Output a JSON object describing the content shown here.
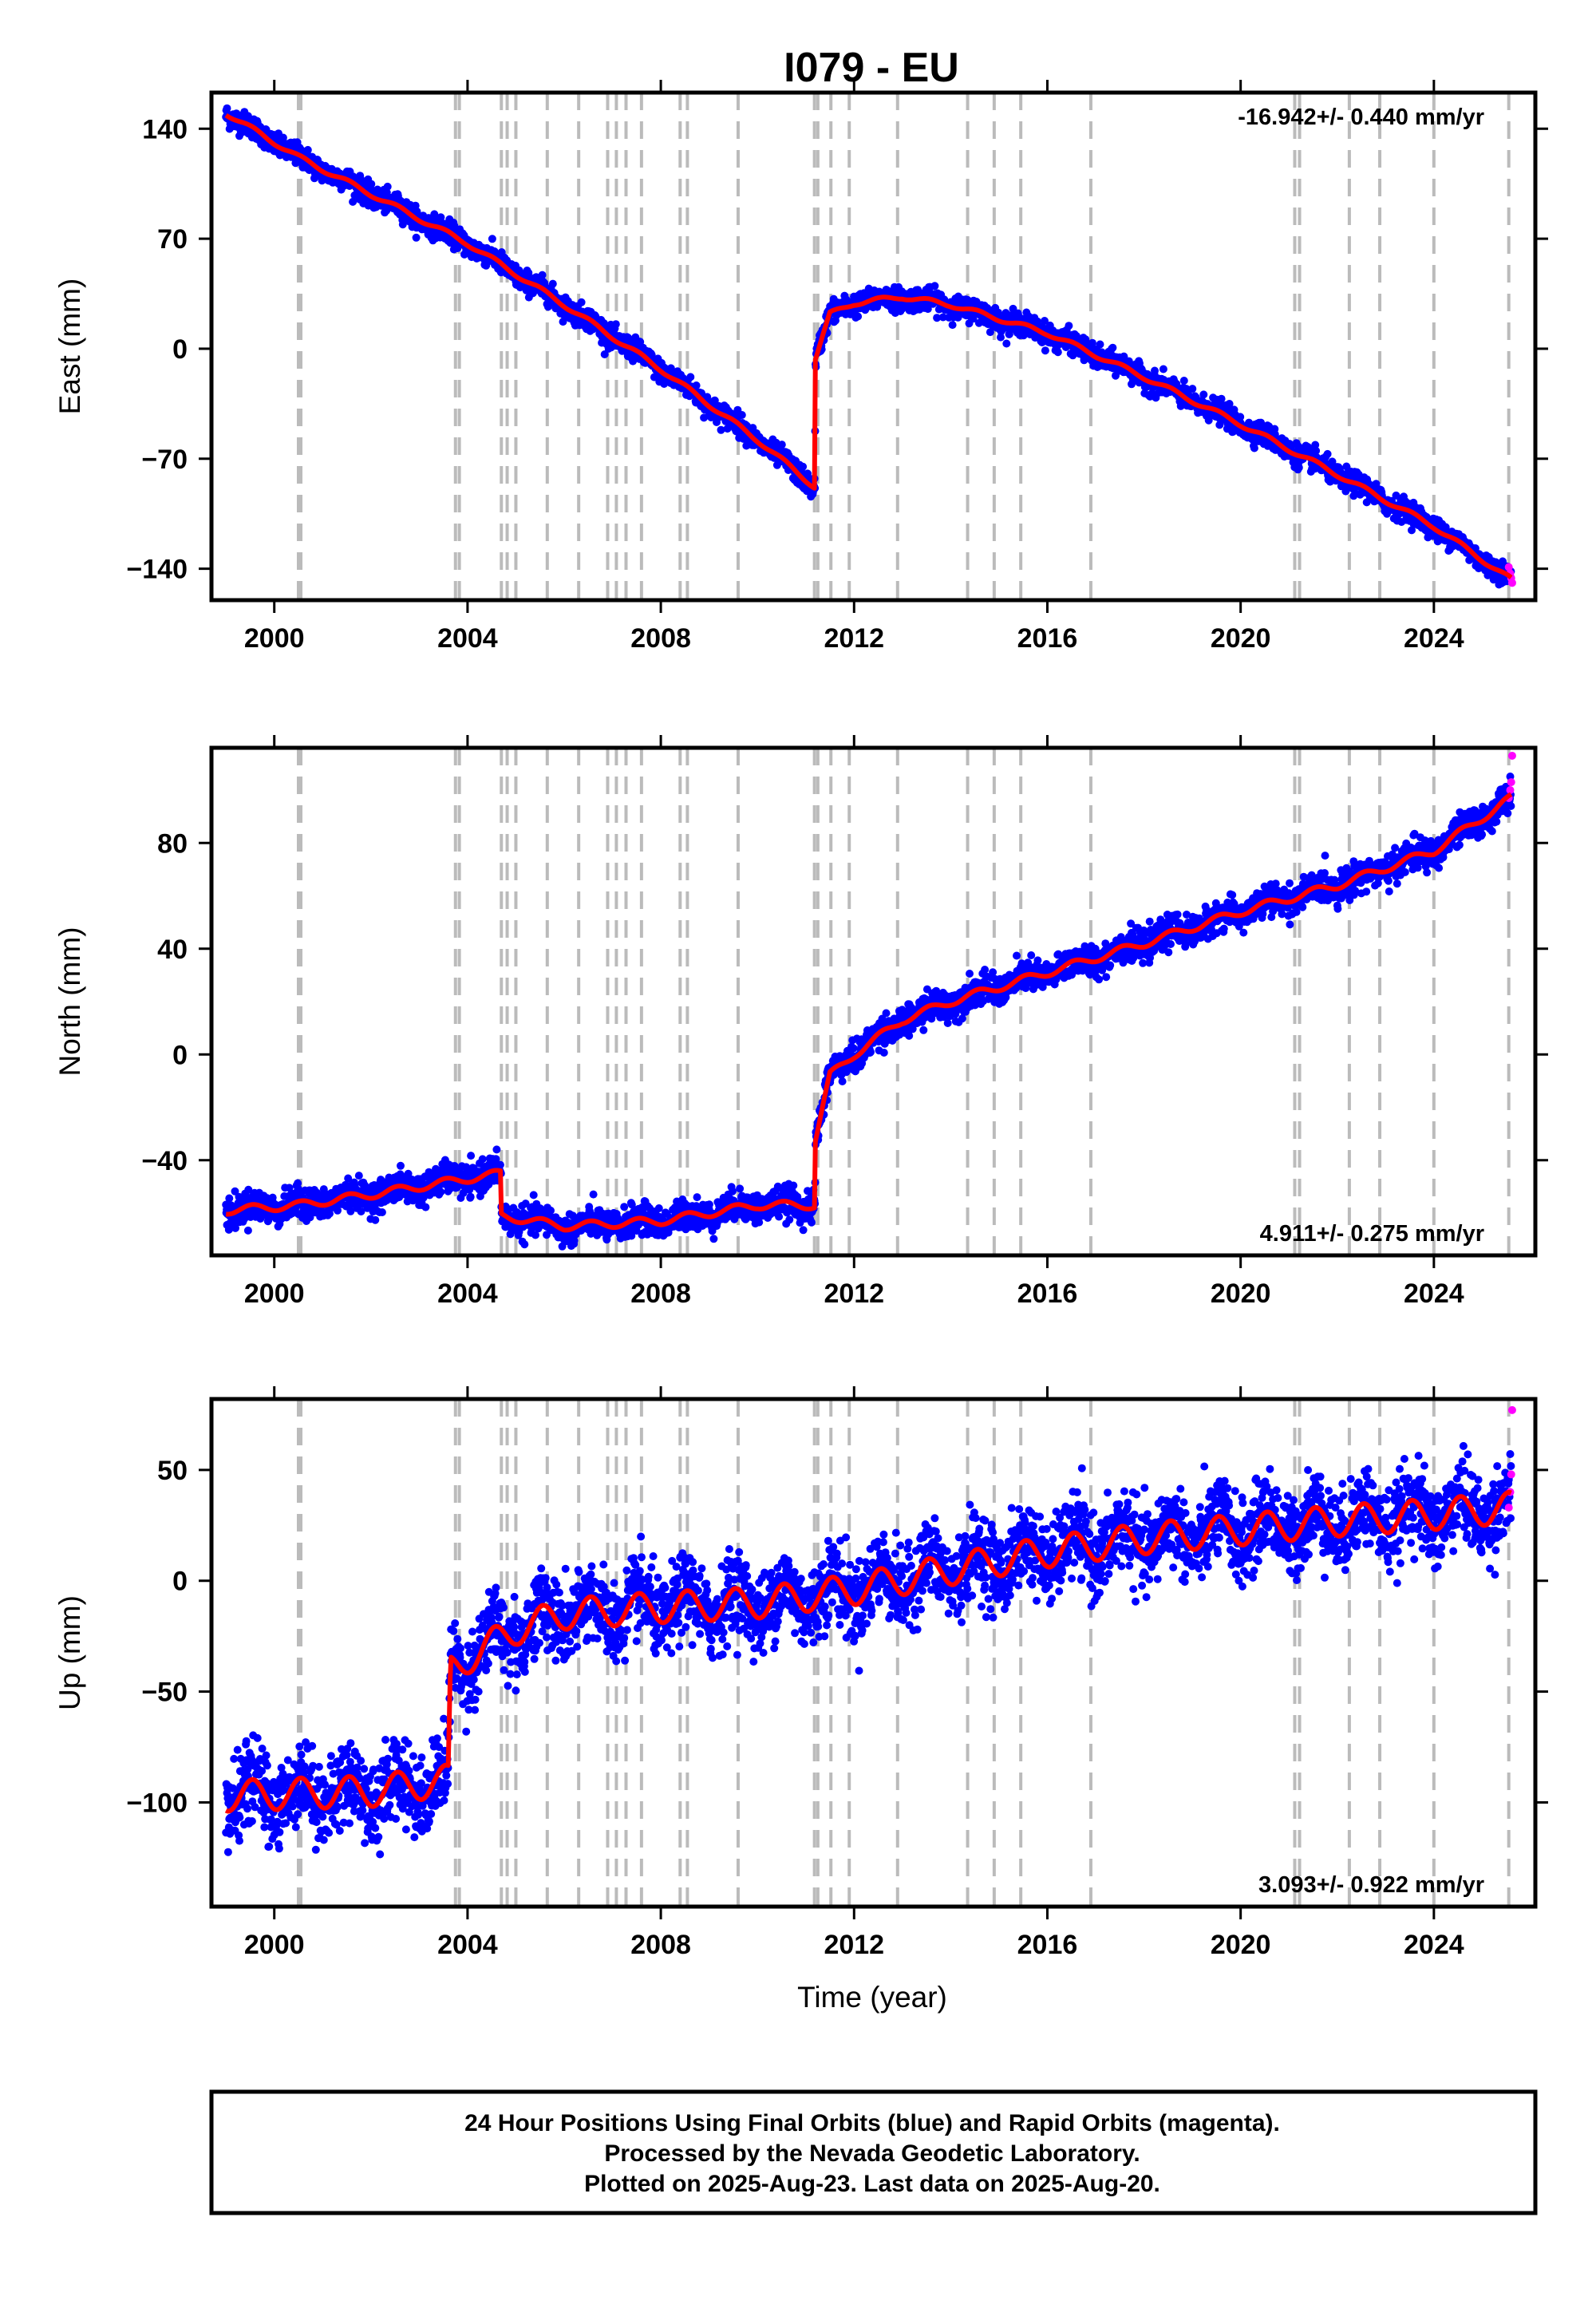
{
  "title": "I079 - EU",
  "xlabel": "Time (year)",
  "colors": {
    "final_orbits": "#0000ff",
    "rapid_orbits": "#ff00ff",
    "model": "#ff0000",
    "event_lines": "#bbbbbb",
    "frame": "#000000"
  },
  "legend": {
    "line1": "24 Hour Positions Using Final Orbits (blue) and Rapid Orbits (magenta).",
    "line2": "Processed by the Nevada Geodetic Laboratory.",
    "line3": "Plotted on 2025-Aug-23. Last data on 2025-Aug-20."
  },
  "chart_data": [
    {
      "type": "scatter",
      "name": "east",
      "ylabel": "East (mm)",
      "rate_text": "-16.942+/- 0.440 mm/yr",
      "rate_position": "top-right",
      "xlim": [
        1998.7,
        2026.1
      ],
      "ylim": [
        -160,
        163
      ],
      "xticks": [
        2000,
        2004,
        2008,
        2012,
        2016,
        2020,
        2024
      ],
      "yticks": [
        -140,
        -70,
        0,
        70,
        140
      ],
      "grid": false,
      "noise_mm": 3.5,
      "seasonal_mm": 1.5,
      "trend_knots": [
        [
          1999.0,
          150
        ],
        [
          2000.5,
          122
        ],
        [
          2004.0,
          67
        ],
        [
          2006.0,
          28
        ],
        [
          2008.0,
          -13
        ],
        [
          2010.0,
          -58
        ],
        [
          2011.19,
          -88
        ],
        [
          2011.2,
          -6
        ],
        [
          2011.5,
          22
        ],
        [
          2012.0,
          29
        ],
        [
          2013.0,
          33
        ],
        [
          2014.0,
          28
        ],
        [
          2016.0,
          10
        ],
        [
          2018.0,
          -18
        ],
        [
          2020.0,
          -48
        ],
        [
          2022.0,
          -80
        ],
        [
          2024.0,
          -113
        ],
        [
          2025.6,
          -147
        ]
      ],
      "rapid_values": [
        [
          2025.55,
          -139
        ],
        [
          2025.58,
          -143
        ],
        [
          2025.6,
          -146
        ],
        [
          2025.62,
          -149
        ]
      ]
    },
    {
      "type": "scatter",
      "name": "north",
      "ylabel": "North (mm)",
      "rate_text": "4.911+/- 0.275 mm/yr",
      "rate_position": "bottom-right",
      "xlim": [
        1998.7,
        2026.1
      ],
      "ylim": [
        -76,
        116
      ],
      "xticks": [
        2000,
        2004,
        2008,
        2012,
        2016,
        2020,
        2024
      ],
      "yticks": [
        -40,
        0,
        40,
        80
      ],
      "grid": false,
      "noise_mm": 2.8,
      "seasonal_mm": 1.5,
      "trend_knots": [
        [
          1999.0,
          -59
        ],
        [
          2000.5,
          -57
        ],
        [
          2002.0,
          -53
        ],
        [
          2004.0,
          -47
        ],
        [
          2004.69,
          -45
        ],
        [
          2004.7,
          -61
        ],
        [
          2006.0,
          -65
        ],
        [
          2008.0,
          -63
        ],
        [
          2010.0,
          -57
        ],
        [
          2011.19,
          -57
        ],
        [
          2011.2,
          -32
        ],
        [
          2011.5,
          -8
        ],
        [
          2012.0,
          0
        ],
        [
          2013.0,
          13
        ],
        [
          2014.0,
          20
        ],
        [
          2016.0,
          31
        ],
        [
          2018.0,
          42
        ],
        [
          2020.0,
          54
        ],
        [
          2022.0,
          64
        ],
        [
          2024.0,
          77
        ],
        [
          2025.6,
          97
        ]
      ],
      "rapid_values": [
        [
          2025.55,
          97
        ],
        [
          2025.58,
          100
        ],
        [
          2025.6,
          103
        ],
        [
          2025.62,
          113
        ]
      ]
    },
    {
      "type": "scatter",
      "name": "up",
      "ylabel": "Up (mm)",
      "rate_text": "3.093+/- 0.922 mm/yr",
      "rate_position": "bottom-right",
      "xlim": [
        1998.7,
        2026.1
      ],
      "ylim": [
        -147,
        82
      ],
      "xticks": [
        2000,
        2004,
        2008,
        2012,
        2016,
        2020,
        2024
      ],
      "yticks": [
        -100,
        -50,
        0,
        50
      ],
      "grid": false,
      "noise_mm": 9,
      "seasonal_mm": 7,
      "trend_knots": [
        [
          1999.0,
          -97
        ],
        [
          2002.0,
          -95
        ],
        [
          2003.6,
          -90
        ],
        [
          2003.65,
          -40
        ],
        [
          2004.0,
          -35
        ],
        [
          2005.0,
          -22
        ],
        [
          2006.0,
          -15
        ],
        [
          2008.0,
          -12
        ],
        [
          2010.0,
          -10
        ],
        [
          2012.0,
          -4
        ],
        [
          2014.0,
          5
        ],
        [
          2016.0,
          13
        ],
        [
          2018.0,
          19
        ],
        [
          2020.0,
          23
        ],
        [
          2022.0,
          27
        ],
        [
          2024.0,
          30
        ],
        [
          2025.6,
          33
        ]
      ],
      "rapid_values": [
        [
          2025.55,
          33
        ],
        [
          2025.58,
          40
        ],
        [
          2025.6,
          48
        ],
        [
          2025.62,
          77
        ]
      ]
    }
  ],
  "event_years": [
    2000.5,
    2000.55,
    2003.75,
    2003.83,
    2004.7,
    2004.82,
    2005.0,
    2005.65,
    2006.3,
    2006.9,
    2007.08,
    2007.28,
    2007.6,
    2008.4,
    2008.55,
    2009.6,
    2011.18,
    2011.25,
    2011.52,
    2011.9,
    2012.9,
    2014.35,
    2014.9,
    2015.45,
    2016.9,
    2021.12,
    2021.22,
    2022.25,
    2022.88,
    2024.0,
    2025.55
  ]
}
